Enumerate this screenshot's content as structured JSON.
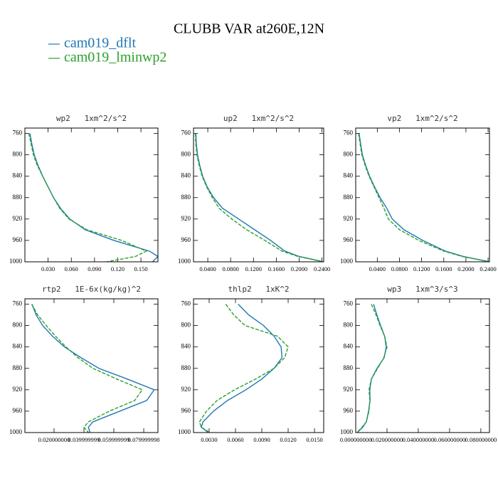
{
  "title": "CLUBB VAR at260E,12N",
  "chart_data": [
    {
      "type": "line",
      "title": "wp2   1xm^2/s^2",
      "y": [
        760,
        780,
        800,
        820,
        840,
        860,
        880,
        900,
        920,
        940,
        960,
        980,
        990,
        1000
      ],
      "ylim": [
        750,
        1000
      ],
      "y_inverted": true,
      "yticks": [
        760,
        800,
        840,
        880,
        920,
        960,
        1000
      ],
      "xlim": [
        0,
        0.172
      ],
      "xticks": [
        {
          "value": 0.03,
          "label": "0.030"
        },
        {
          "value": 0.06,
          "label": "0.060"
        },
        {
          "value": 0.09,
          "label": "0.090"
        },
        {
          "value": 0.12,
          "label": "0.120"
        },
        {
          "value": 0.15,
          "label": "0.150"
        }
      ],
      "series": [
        {
          "name": "cam019_dflt",
          "color": "#1f77b4",
          "values": [
            0.0065,
            0.009,
            0.012,
            0.017,
            0.023,
            0.03,
            0.037,
            0.046,
            0.058,
            0.078,
            0.115,
            0.161,
            0.172,
            0.165
          ]
        },
        {
          "name": "cam019_lminwp2",
          "color": "#2ca02c",
          "dash": "5 2",
          "values": [
            0.005,
            0.008,
            0.011,
            0.016,
            0.023,
            0.03,
            0.037,
            0.045,
            0.057,
            0.08,
            0.125,
            0.157,
            0.143,
            0.106
          ]
        }
      ]
    },
    {
      "type": "line",
      "title": "up2   1xm^2/s^2",
      "y": [
        760,
        780,
        800,
        820,
        840,
        860,
        880,
        900,
        920,
        940,
        960,
        980,
        990,
        1000
      ],
      "ylim": [
        750,
        1000
      ],
      "y_inverted": true,
      "yticks": [
        760,
        800,
        840,
        880,
        920,
        960,
        1000
      ],
      "xlim": [
        0.015,
        0.243
      ],
      "xticks": [
        {
          "value": 0.04,
          "label": "0.0400"
        },
        {
          "value": 0.08,
          "label": "0.0800"
        },
        {
          "value": 0.12,
          "label": "0.1200"
        },
        {
          "value": 0.16,
          "label": "0.1600"
        },
        {
          "value": 0.2,
          "label": "0.2000"
        },
        {
          "value": 0.24,
          "label": "0.2400"
        }
      ],
      "series": [
        {
          "name": "cam019_dflt",
          "color": "#1f77b4",
          "values": [
            0.019,
            0.02,
            0.022,
            0.026,
            0.031,
            0.039,
            0.05,
            0.066,
            0.094,
            0.122,
            0.15,
            0.175,
            0.2,
            0.243
          ]
        },
        {
          "name": "cam019_lminwp2",
          "color": "#2ca02c",
          "dash": "5 2",
          "values": [
            0.018,
            0.019,
            0.021,
            0.025,
            0.03,
            0.038,
            0.048,
            0.06,
            0.082,
            0.108,
            0.14,
            0.17,
            0.198,
            0.243
          ]
        }
      ]
    },
    {
      "type": "line",
      "title": "vp2   1xm^2/s^2",
      "y": [
        760,
        780,
        800,
        820,
        840,
        860,
        880,
        900,
        920,
        940,
        960,
        980,
        990,
        1000
      ],
      "ylim": [
        750,
        1000
      ],
      "y_inverted": true,
      "yticks": [
        760,
        800,
        840,
        880,
        920,
        960,
        1000
      ],
      "xlim": [
        0.001,
        0.2425
      ],
      "xticks": [
        {
          "value": 0.04,
          "label": "0.0400"
        },
        {
          "value": 0.08,
          "label": "0.0800"
        },
        {
          "value": 0.12,
          "label": "0.1200"
        },
        {
          "value": 0.16,
          "label": "0.1600"
        },
        {
          "value": 0.2,
          "label": "0.2000"
        },
        {
          "value": 0.24,
          "label": "0.2400"
        }
      ],
      "series": [
        {
          "name": "cam019_dflt",
          "color": "#1f77b4",
          "values": [
            0.007,
            0.01,
            0.013,
            0.019,
            0.026,
            0.035,
            0.045,
            0.057,
            0.067,
            0.088,
            0.122,
            0.163,
            0.195,
            0.2425
          ]
        },
        {
          "name": "cam019_lminwp2",
          "color": "#2ca02c",
          "dash": "5 2",
          "values": [
            0.006,
            0.009,
            0.012,
            0.018,
            0.025,
            0.034,
            0.043,
            0.052,
            0.06,
            0.08,
            0.115,
            0.16,
            0.193,
            0.2425
          ]
        }
      ]
    },
    {
      "type": "line",
      "title": "rtp2   1E-6x(kg/kg)^2",
      "y": [
        760,
        780,
        800,
        820,
        840,
        860,
        880,
        900,
        920,
        940,
        960,
        980,
        990,
        1000
      ],
      "ylim": [
        750,
        1000
      ],
      "y_inverted": true,
      "yticks": [
        760,
        800,
        840,
        880,
        920,
        960,
        1000
      ],
      "xlim": [
        0.0005,
        0.0895
      ],
      "xticks": [
        {
          "value": 0.02,
          "label": "0.020000000"
        },
        {
          "value": 0.04,
          "label": "0.039999999"
        },
        {
          "value": 0.06,
          "label": "0.059999999"
        },
        {
          "value": 0.08,
          "label": "0.079999998"
        }
      ],
      "series": [
        {
          "name": "cam019_dflt",
          "color": "#1f77b4",
          "values": [
            0.0052,
            0.008,
            0.0124,
            0.019,
            0.027,
            0.038,
            0.05,
            0.069,
            0.087,
            0.082,
            0.064,
            0.046,
            0.043,
            0.044
          ]
        },
        {
          "name": "cam019_lminwp2",
          "color": "#2ca02c",
          "dash": "5 2",
          "values": [
            0.005,
            0.009,
            0.0148,
            0.021,
            0.028,
            0.036,
            0.046,
            0.062,
            0.079,
            0.074,
            0.057,
            0.043,
            0.04,
            0.043
          ]
        }
      ]
    },
    {
      "type": "line",
      "title": "thlp2   1xK^2",
      "y": [
        760,
        780,
        800,
        820,
        840,
        860,
        880,
        900,
        920,
        940,
        960,
        980,
        990,
        1000
      ],
      "ylim": [
        750,
        1000
      ],
      "y_inverted": true,
      "yticks": [
        760,
        800,
        840,
        880,
        920,
        960,
        1000
      ],
      "xlim": [
        0.00122,
        0.01605
      ],
      "xticks": [
        {
          "value": 0.003,
          "label": "0.0030"
        },
        {
          "value": 0.006,
          "label": "0.0060"
        },
        {
          "value": 0.009,
          "label": "0.0090"
        },
        {
          "value": 0.012,
          "label": "0.0120"
        },
        {
          "value": 0.015,
          "label": "0.0150"
        }
      ],
      "series": [
        {
          "name": "cam019_dflt",
          "color": "#1f77b4",
          "values": [
            0.0063,
            0.0075,
            0.0092,
            0.0104,
            0.0112,
            0.0113,
            0.0104,
            0.009,
            0.0072,
            0.0051,
            0.0035,
            0.0023,
            0.0021,
            0.0029
          ]
        },
        {
          "name": "cam019_lminwp2",
          "color": "#2ca02c",
          "dash": "5 2",
          "values": [
            0.0049,
            0.0058,
            0.0071,
            0.0108,
            0.012,
            0.0116,
            0.0104,
            0.0083,
            0.0059,
            0.0039,
            0.0027,
            0.0019,
            0.0021,
            0.0031
          ]
        }
      ]
    },
    {
      "type": "line",
      "title": "wp3   1xm^3/s^3",
      "y": [
        760,
        780,
        800,
        820,
        840,
        860,
        880,
        900,
        920,
        940,
        960,
        980,
        990,
        1000
      ],
      "ylim": [
        750,
        1000
      ],
      "y_inverted": true,
      "yticks": [
        760,
        800,
        840,
        880,
        920,
        960,
        1000
      ],
      "xlim": [
        0,
        0.0855
      ],
      "xticks": [
        {
          "value": 0,
          "label": "0.000000000"
        },
        {
          "value": 0.02,
          "label": "0.020000000"
        },
        {
          "value": 0.04,
          "label": "0.040000000"
        },
        {
          "value": 0.06,
          "label": "0.060000000"
        },
        {
          "value": 0.08,
          "label": "0.080000000"
        }
      ],
      "series": [
        {
          "name": "cam019_dflt",
          "color": "#1f77b4",
          "values": [
            0.0114,
            0.0135,
            0.0159,
            0.0185,
            0.0195,
            0.0182,
            0.0136,
            0.01,
            0.009,
            0.0092,
            0.0082,
            0.0068,
            0.0045,
            0.001
          ]
        },
        {
          "name": "cam019_lminwp2",
          "color": "#2ca02c",
          "dash": "5 2",
          "values": [
            0.01,
            0.013,
            0.0155,
            0.0185,
            0.02,
            0.018,
            0.014,
            0.01,
            0.0085,
            0.009,
            0.0085,
            0.0068,
            0.004,
            0.0008
          ]
        }
      ]
    }
  ]
}
